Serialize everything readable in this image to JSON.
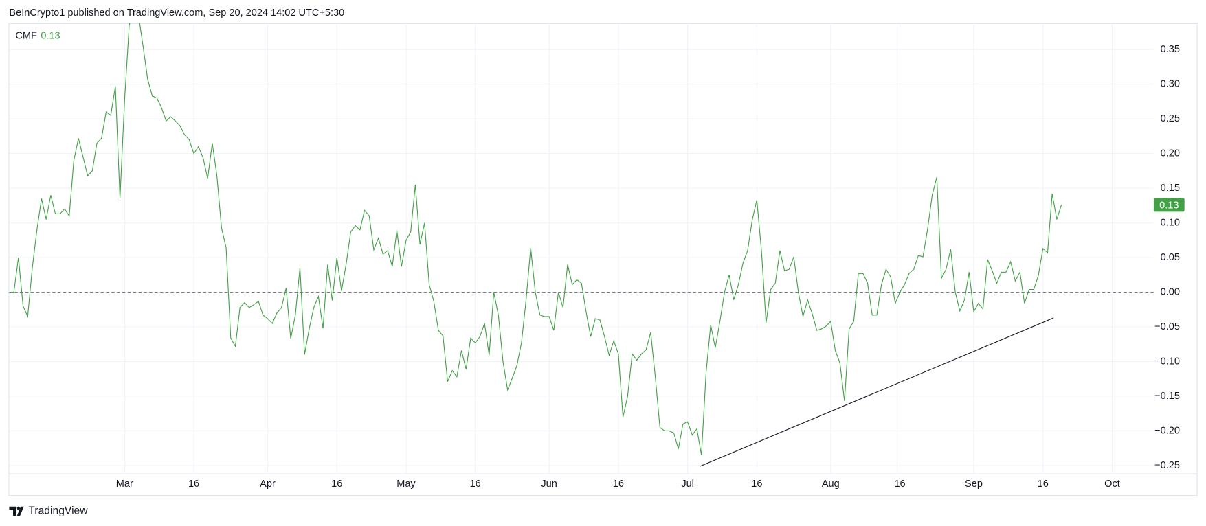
{
  "header": {
    "text": "BeInCrypto1 published on TradingView.com, Sep 20, 2024 14:02 UTC+5:30"
  },
  "footer": {
    "brand": "TradingView"
  },
  "chart_data": {
    "type": "line",
    "series": [
      {
        "name": "CMF",
        "color": "#43a047",
        "last_label": "0.13",
        "values": [
          0.0,
          0.0,
          0.05,
          -0.02,
          -0.035,
          0.035,
          0.09,
          0.135,
          0.105,
          0.14,
          0.113,
          0.113,
          0.12,
          0.11,
          0.19,
          0.222,
          0.195,
          0.168,
          0.175,
          0.215,
          0.222,
          0.26,
          0.255,
          0.297,
          0.135,
          0.277,
          0.385,
          0.405,
          0.4,
          0.355,
          0.307,
          0.283,
          0.28,
          0.266,
          0.247,
          0.253,
          0.247,
          0.24,
          0.227,
          0.22,
          0.2,
          0.21,
          0.194,
          0.164,
          0.215,
          0.168,
          0.093,
          0.064,
          -0.066,
          -0.078,
          -0.022,
          -0.015,
          -0.022,
          -0.018,
          -0.013,
          -0.033,
          -0.038,
          -0.045,
          -0.03,
          -0.022,
          0.006,
          -0.067,
          -0.033,
          0.035,
          -0.09,
          -0.053,
          -0.022,
          -0.006,
          -0.052,
          0.04,
          -0.012,
          0.05,
          0.002,
          0.04,
          0.087,
          0.096,
          0.09,
          0.118,
          0.11,
          0.061,
          0.078,
          0.055,
          0.06,
          0.037,
          0.089,
          0.037,
          0.075,
          0.087,
          0.155,
          0.069,
          0.1,
          0.011,
          -0.013,
          -0.055,
          -0.063,
          -0.129,
          -0.113,
          -0.122,
          -0.084,
          -0.111,
          -0.066,
          -0.073,
          -0.064,
          -0.045,
          -0.091,
          0.0,
          -0.033,
          -0.1,
          -0.141,
          -0.124,
          -0.106,
          -0.073,
          -0.011,
          0.064,
          0.0,
          -0.033,
          -0.035,
          -0.035,
          -0.055,
          0.0,
          -0.022,
          0.04,
          0.011,
          0.018,
          0.013,
          -0.028,
          -0.064,
          -0.038,
          -0.04,
          -0.064,
          -0.091,
          -0.07,
          -0.089,
          -0.18,
          -0.15,
          -0.089,
          -0.098,
          -0.089,
          -0.083,
          -0.058,
          -0.122,
          -0.195,
          -0.2,
          -0.2,
          -0.203,
          -0.226,
          -0.19,
          -0.187,
          -0.206,
          -0.197,
          -0.235,
          -0.116,
          -0.047,
          -0.08,
          -0.042,
          0.0,
          0.025,
          -0.011,
          0.011,
          0.042,
          0.06,
          0.104,
          0.133,
          0.06,
          -0.044,
          0.004,
          0.013,
          0.06,
          0.031,
          0.033,
          0.051,
          0.0,
          -0.035,
          -0.011,
          -0.031,
          -0.055,
          -0.053,
          -0.049,
          -0.042,
          -0.084,
          -0.102,
          -0.157,
          -0.053,
          -0.042,
          0.027,
          0.027,
          0.013,
          -0.033,
          -0.033,
          0.011,
          0.033,
          0.022,
          -0.016,
          0.0,
          0.011,
          0.027,
          0.033,
          0.053,
          0.051,
          0.091,
          0.14,
          0.166,
          0.02,
          0.033,
          0.062,
          0.0,
          -0.027,
          -0.011,
          0.029,
          -0.028,
          -0.016,
          -0.024,
          0.047,
          0.031,
          0.013,
          0.029,
          0.029,
          0.044,
          0.016,
          0.029,
          -0.016,
          0.004,
          0.004,
          0.024,
          0.063,
          0.057,
          0.142,
          0.105,
          0.126
        ]
      }
    ],
    "xlim": [
      0,
      248
    ],
    "xticks": [
      {
        "value": 25,
        "label": "Mar"
      },
      {
        "value": 40,
        "label": "16"
      },
      {
        "value": 56,
        "label": "Apr"
      },
      {
        "value": 71,
        "label": "16"
      },
      {
        "value": 86,
        "label": "May"
      },
      {
        "value": 101,
        "label": "16"
      },
      {
        "value": 117,
        "label": "Jun"
      },
      {
        "value": 132,
        "label": "16"
      },
      {
        "value": 147,
        "label": "Jul"
      },
      {
        "value": 162,
        "label": "16"
      },
      {
        "value": 178,
        "label": "Aug"
      },
      {
        "value": 193,
        "label": "16"
      },
      {
        "value": 209,
        "label": "Sep"
      },
      {
        "value": 224,
        "label": "16"
      },
      {
        "value": 239,
        "label": "Oct"
      }
    ],
    "ylim": [
      -0.2616,
      0.388
    ],
    "yticks": [
      {
        "value": 0.35,
        "label": "0.35"
      },
      {
        "value": 0.3,
        "label": "0.30"
      },
      {
        "value": 0.25,
        "label": "0.25"
      },
      {
        "value": 0.2,
        "label": "0.20"
      },
      {
        "value": 0.15,
        "label": "0.15"
      },
      {
        "value": 0.1,
        "label": "0.10"
      },
      {
        "value": 0.05,
        "label": "0.05"
      },
      {
        "value": 0,
        "label": "0.00"
      },
      {
        "value": -0.05,
        "label": "−0.05"
      },
      {
        "value": -0.1,
        "label": "−0.10"
      },
      {
        "value": -0.15,
        "label": "−0.15"
      },
      {
        "value": -0.2,
        "label": "−0.20"
      },
      {
        "value": -0.25,
        "label": "−0.25"
      }
    ],
    "grid": true,
    "zero_line": 0,
    "trendline": {
      "color": "#131722",
      "x": [
        149.7,
        226.3
      ],
      "y": [
        -0.251,
        -0.037
      ]
    }
  }
}
